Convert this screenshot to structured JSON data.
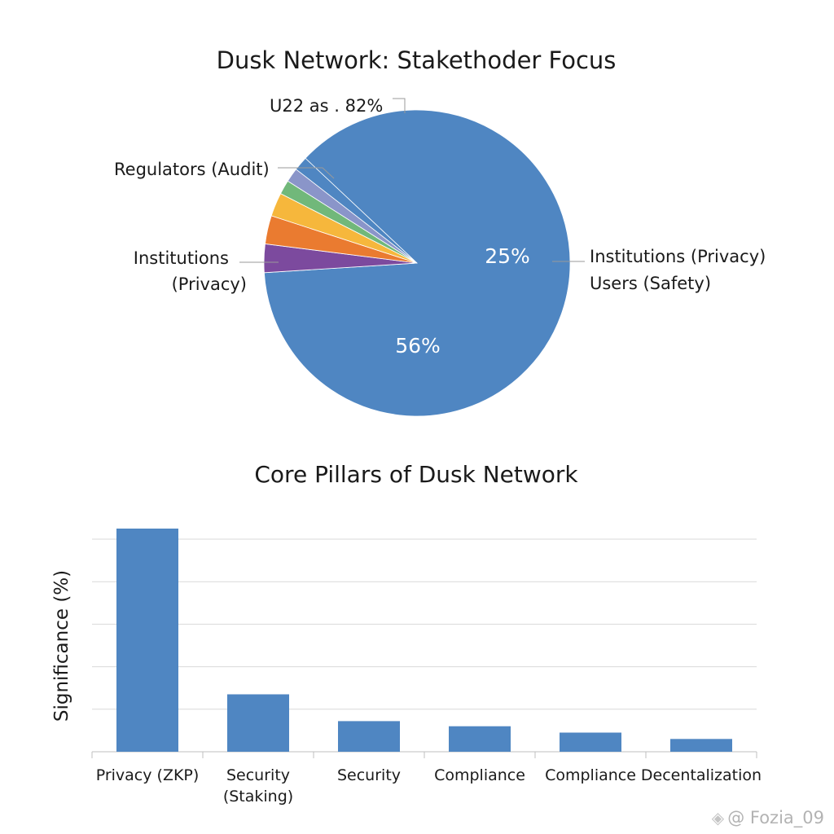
{
  "chart_data": [
    {
      "type": "pie",
      "title": "Dusk Network: Stakethoder Focus",
      "slices": [
        {
          "name": "Institutions (Privacy)",
          "value": 87.0,
          "color": "#4f86c2"
        },
        {
          "name": "Regulators (Audit)",
          "value": 3.0,
          "color": "#7c4a9e"
        },
        {
          "name": "",
          "value": 3.0,
          "color": "#ea7b30"
        },
        {
          "name": "",
          "value": 2.5,
          "color": "#f6b73c"
        },
        {
          "name": "",
          "value": 1.5,
          "color": "#71b87a"
        },
        {
          "name": "",
          "value": 1.5,
          "color": "#8a95c9"
        },
        {
          "name": "",
          "value": 1.5,
          "color": "#4f86c2"
        }
      ],
      "annotations": [
        {
          "text": "U22 as . 82%"
        },
        {
          "text": "Regulators (Audit)"
        },
        {
          "text": "Institutions"
        },
        {
          "text": "(Privacy)"
        },
        {
          "text": "Institutions (Privacy)"
        },
        {
          "text": "Users (Safety)"
        }
      ],
      "data_labels": [
        "25%",
        "56%"
      ]
    },
    {
      "type": "bar",
      "title": "Core Pillars of Dusk Network",
      "ylabel": "Significance (%)",
      "xlabel": "",
      "categories": [
        [
          "Privacy (ZKP)"
        ],
        [
          "Security",
          "(Staking)"
        ],
        [
          "Security"
        ],
        [
          "Compliance"
        ],
        [
          "Compliance"
        ],
        [
          "Decentalization"
        ]
      ],
      "values": [
        52.5,
        13.5,
        7.2,
        6.0,
        4.5,
        3.0
      ],
      "ylim": [
        0,
        55
      ],
      "yticks": [
        0,
        10,
        20,
        30,
        40,
        50
      ],
      "grid": true,
      "color": "#4f86c2"
    }
  ],
  "watermark": {
    "text": "@ Fozia_09",
    "icon": "diamond-logo-icon"
  }
}
